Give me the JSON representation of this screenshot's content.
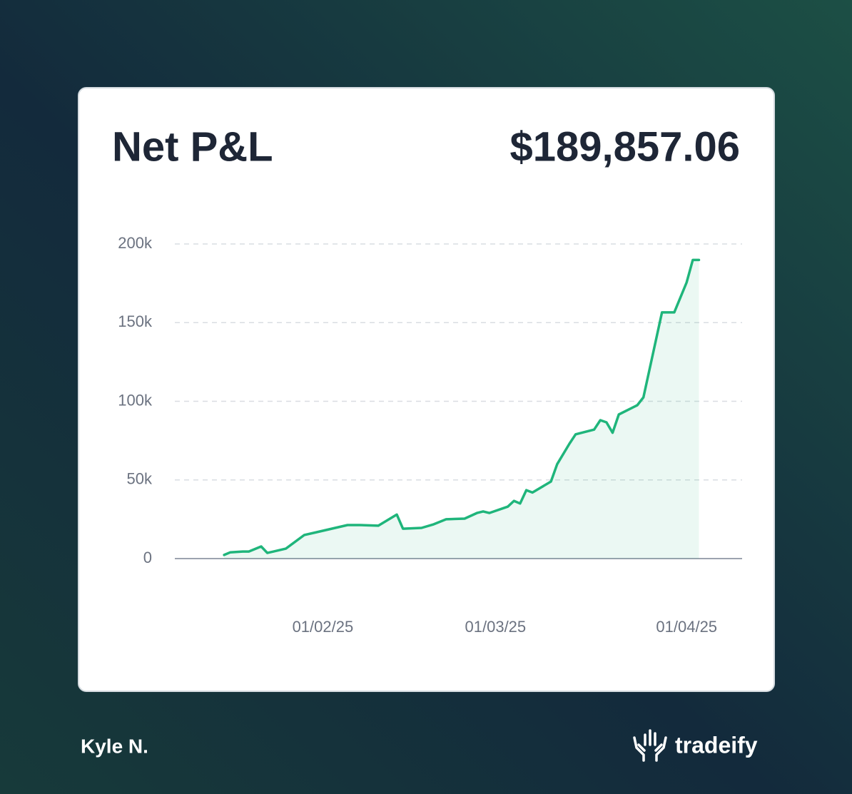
{
  "chart_data": {
    "type": "line",
    "title": "Net P&L",
    "headline_value": "$189,857.06",
    "user": "Kyle N.",
    "brand": "tradeify",
    "x": [
      "2025-01-16",
      "2025-01-17",
      "2025-01-19",
      "2025-01-20",
      "2025-01-22",
      "2025-01-23",
      "2025-01-26",
      "2025-01-29",
      "2025-01-31",
      "2025-02-03",
      "2025-02-05",
      "2025-02-07",
      "2025-02-10",
      "2025-02-13",
      "2025-02-14",
      "2025-02-17",
      "2025-02-19",
      "2025-02-21",
      "2025-02-24",
      "2025-02-26",
      "2025-02-27",
      "2025-02-28",
      "2025-03-03",
      "2025-03-04",
      "2025-03-05",
      "2025-03-06",
      "2025-03-07",
      "2025-03-10",
      "2025-03-11",
      "2025-03-13",
      "2025-03-14",
      "2025-03-17",
      "2025-03-18",
      "2025-03-19",
      "2025-03-20",
      "2025-03-21",
      "2025-03-24",
      "2025-03-25",
      "2025-03-28",
      "2025-03-30",
      "2025-04-01",
      "2025-04-02",
      "2025-04-03"
    ],
    "values": [
      2300,
      4000,
      4500,
      4500,
      7700,
      3600,
      6300,
      15000,
      16800,
      19500,
      21300,
      21300,
      20900,
      28000,
      19000,
      19500,
      21800,
      25000,
      25400,
      29000,
      30000,
      29000,
      33000,
      36700,
      35000,
      43500,
      42000,
      49000,
      60000,
      73000,
      79000,
      82000,
      88000,
      86600,
      80000,
      91600,
      97500,
      102500,
      156500,
      156500,
      175500,
      189857.06,
      189857.06
    ],
    "color": "#1fb57b",
    "xlim": [
      "2025-01-08",
      "2025-04-10"
    ],
    "xticks": [
      {
        "value": "2025-02-01",
        "label": "01/02/25"
      },
      {
        "value": "2025-03-01",
        "label": "01/03/25"
      },
      {
        "value": "2025-04-01",
        "label": "01/04/25"
      }
    ],
    "ylim": [
      0,
      200000
    ],
    "yticks": [
      0,
      {
        "value": 50000,
        "label": "50k"
      },
      {
        "value": 100000,
        "label": "100k"
      },
      {
        "value": 150000,
        "label": "150k"
      },
      {
        "value": 200000,
        "label": "200k"
      }
    ],
    "grid": true
  }
}
